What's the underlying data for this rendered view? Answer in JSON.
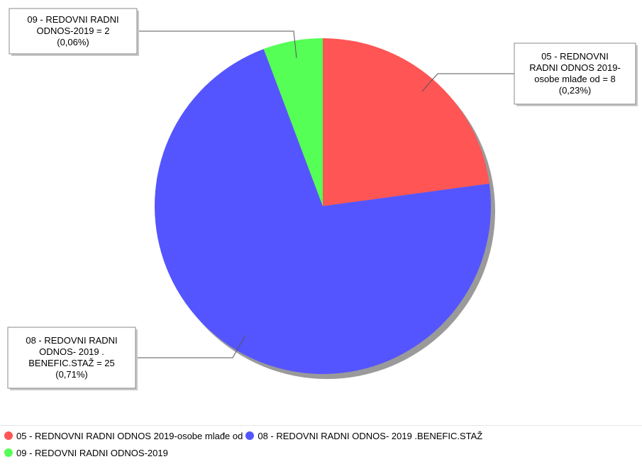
{
  "chart_data": {
    "type": "pie",
    "title": "",
    "categories": [
      "05 - REDNOVNI RADNI ODNOS 2019-osobe mlađe od",
      "08 - REDOVNI RADNI ODNOS- 2019 .BENEFIC.STAŽ",
      "09 - REDOVNI RADNI ODNOS-2019"
    ],
    "values": [
      8,
      25,
      2
    ],
    "percent_labels": [
      "(0,23%)",
      "(0,71%)",
      "(0,06%)"
    ],
    "colors": [
      "#ff5555",
      "#5555ff",
      "#55ff55"
    ],
    "callouts": [
      [
        "05 - REDNOVNI",
        "RADNI ODNOS 2019-",
        "osobe mlađe od = 8",
        "(0,23%)"
      ],
      [
        "08 - REDOVNI RADNI",
        "ODNOS- 2019 .",
        "BENEFIC.STAŽ = 25",
        "(0,71%)"
      ],
      [
        "09 - REDOVNI RADNI",
        "ODNOS-2019 = 2",
        "(0,06%)"
      ]
    ],
    "legend_position": "bottom"
  },
  "legend": {
    "rows": [
      [
        {
          "label": "05 - REDNOVNI RADNI ODNOS 2019-osobe mlađe od",
          "color": "#ff5555"
        },
        {
          "label": "08 - REDOVNI RADNI ODNOS- 2019 .BENEFIC.STAŽ",
          "color": "#5555ff"
        }
      ],
      [
        {
          "label": "09 - REDOVNI RADNI ODNOS-2019",
          "color": "#55ff55"
        }
      ]
    ]
  }
}
